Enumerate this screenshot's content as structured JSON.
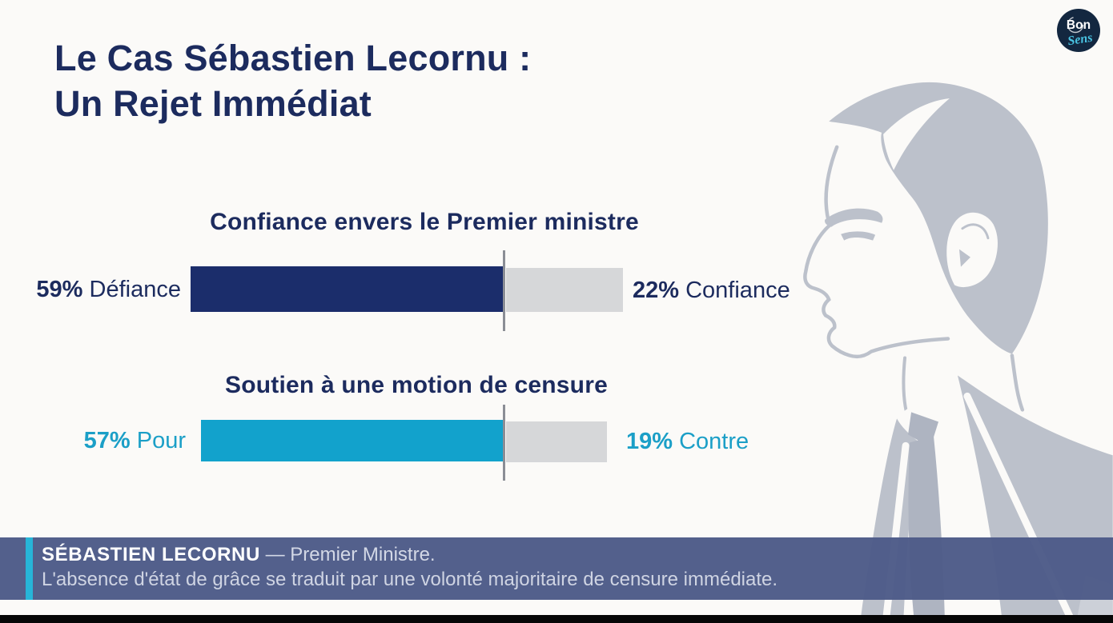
{
  "title": {
    "line1": "Le Cas Sébastien Lecornu :",
    "line2": "Un Rejet Immédiat"
  },
  "logo": {
    "top": "Bon",
    "bottom": "Sens"
  },
  "chart_data": [
    {
      "type": "bar",
      "orientation": "horizontal-diverging",
      "title": "Confiance envers le Premier ministre",
      "unit": "%",
      "xlim": [
        0,
        100
      ],
      "center_divider": true,
      "text_color": "#1c2b5e",
      "series": [
        {
          "name": "Défiance",
          "value": 59,
          "value_label": "59%",
          "side": "left",
          "color": "#1b2d6b"
        },
        {
          "name": "Confiance",
          "value": 22,
          "value_label": "22%",
          "side": "right",
          "color": "#d6d7d9"
        }
      ]
    },
    {
      "type": "bar",
      "orientation": "horizontal-diverging",
      "title": "Soutien à une motion de censure",
      "unit": "%",
      "xlim": [
        0,
        100
      ],
      "center_divider": true,
      "text_color": "#1b9fc7",
      "series": [
        {
          "name": "Pour",
          "value": 57,
          "value_label": "57%",
          "side": "left",
          "color": "#12a2cc"
        },
        {
          "name": "Contre",
          "value": 19,
          "value_label": "19%",
          "side": "right",
          "color": "#d6d7d9"
        }
      ]
    }
  ],
  "footer": {
    "name": "SÉBASTIEN LECORNU",
    "role": "— Premier Ministre.",
    "description": "L'absence d'état de grâce se traduit par une volonté majoritaire de censure immédiate."
  },
  "colors": {
    "background": "#fbfaf8",
    "title_navy": "#1c2b5e",
    "bar_navy": "#1b2d6b",
    "bar_cyan": "#12a2cc",
    "bar_gray": "#d6d7d9",
    "banner_bg": "#4d5b88",
    "banner_accent": "#27b5d8",
    "silhouette_gray": "#bcc1cb",
    "logo_circle": "#132740",
    "logo_script": "#49c3e2"
  }
}
